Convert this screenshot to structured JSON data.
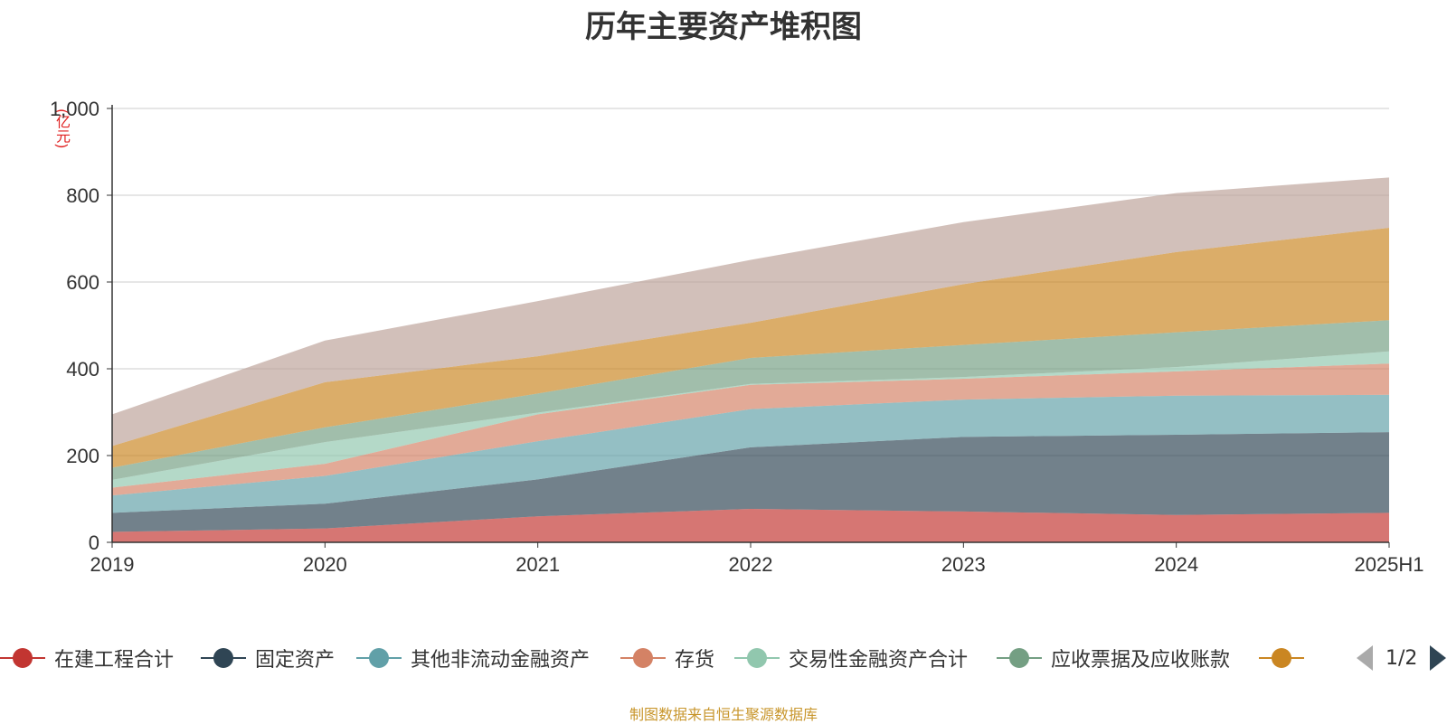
{
  "chart_data": {
    "type": "area",
    "title": "历年主要资产堆积图",
    "unit_label": "(亿元)",
    "categories": [
      "2019",
      "2020",
      "2021",
      "2022",
      "2023",
      "2024",
      "2025H1"
    ],
    "ylim": [
      0,
      1000
    ],
    "y_ticks": [
      "0",
      "200",
      "400",
      "600",
      "800",
      "1,000"
    ],
    "grid": true,
    "stacked": true,
    "series": [
      {
        "name": "在建工程合计",
        "color": "#c23531",
        "values": [
          24,
          32,
          60,
          77,
          71,
          63,
          68
        ]
      },
      {
        "name": "固定资产",
        "color": "#2f4554",
        "values": [
          44,
          57,
          85,
          142,
          172,
          185,
          186
        ]
      },
      {
        "name": "其他非流动金融资产",
        "color": "#61a0a8",
        "values": [
          40,
          64,
          88,
          88,
          86,
          90,
          86
        ]
      },
      {
        "name": "存货",
        "color": "#d48265",
        "values": [
          18,
          28,
          62,
          56,
          48,
          56,
          72
        ]
      },
      {
        "name": "交易性金融资产合计",
        "color": "#91c7ae",
        "values": [
          18,
          50,
          4,
          2,
          4,
          10,
          28
        ]
      },
      {
        "name": "应收票据及应收账款",
        "color": "#749f83",
        "values": [
          28,
          34,
          44,
          60,
          74,
          80,
          72
        ]
      },
      {
        "name": "",
        "color": "#ca8622",
        "values": [
          50,
          104,
          86,
          81,
          140,
          185,
          213
        ]
      },
      {
        "name": "",
        "color": "#bda29a",
        "values": [
          73,
          96,
          127,
          145,
          143,
          136,
          116
        ]
      }
    ]
  },
  "legend": {
    "items": [
      {
        "label": "在建工程合计",
        "color": "#c23531"
      },
      {
        "label": "固定资产",
        "color": "#2f4554"
      },
      {
        "label": "其他非流动金融资产",
        "color": "#61a0a8"
      },
      {
        "label": "存货",
        "color": "#d48265"
      },
      {
        "label": "交易性金融资产合计",
        "color": "#91c7ae"
      },
      {
        "label": "应收票据及应收账款",
        "color": "#749f83"
      },
      {
        "label": "",
        "color": "#ca8622"
      }
    ],
    "page_indicator": "1/2"
  },
  "footer": "制图数据来自恒生聚源数据库"
}
